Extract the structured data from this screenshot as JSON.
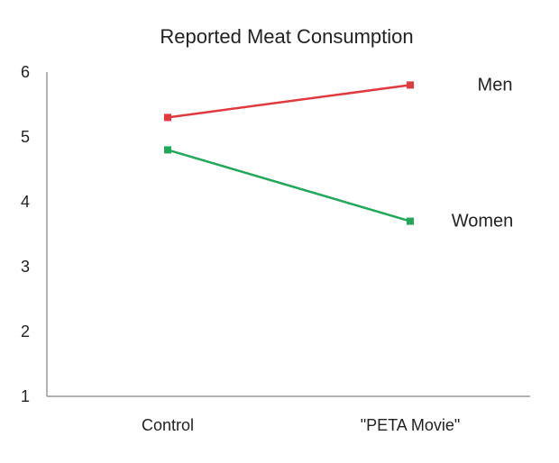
{
  "chart_data": {
    "type": "line",
    "title": "Reported Meat Consumption",
    "xlabel": "",
    "ylabel": "",
    "categories": [
      "Control",
      "\"PETA Movie\""
    ],
    "ylim": [
      1,
      6
    ],
    "yticks": [
      1,
      2,
      3,
      4,
      5,
      6
    ],
    "grid": false,
    "legend": "inline labels at line ends",
    "series": [
      {
        "name": "Men",
        "values": [
          5.3,
          5.8
        ],
        "color": "#e0393e"
      },
      {
        "name": "Women",
        "values": [
          4.8,
          3.7
        ],
        "color": "#22a85a"
      }
    ]
  }
}
